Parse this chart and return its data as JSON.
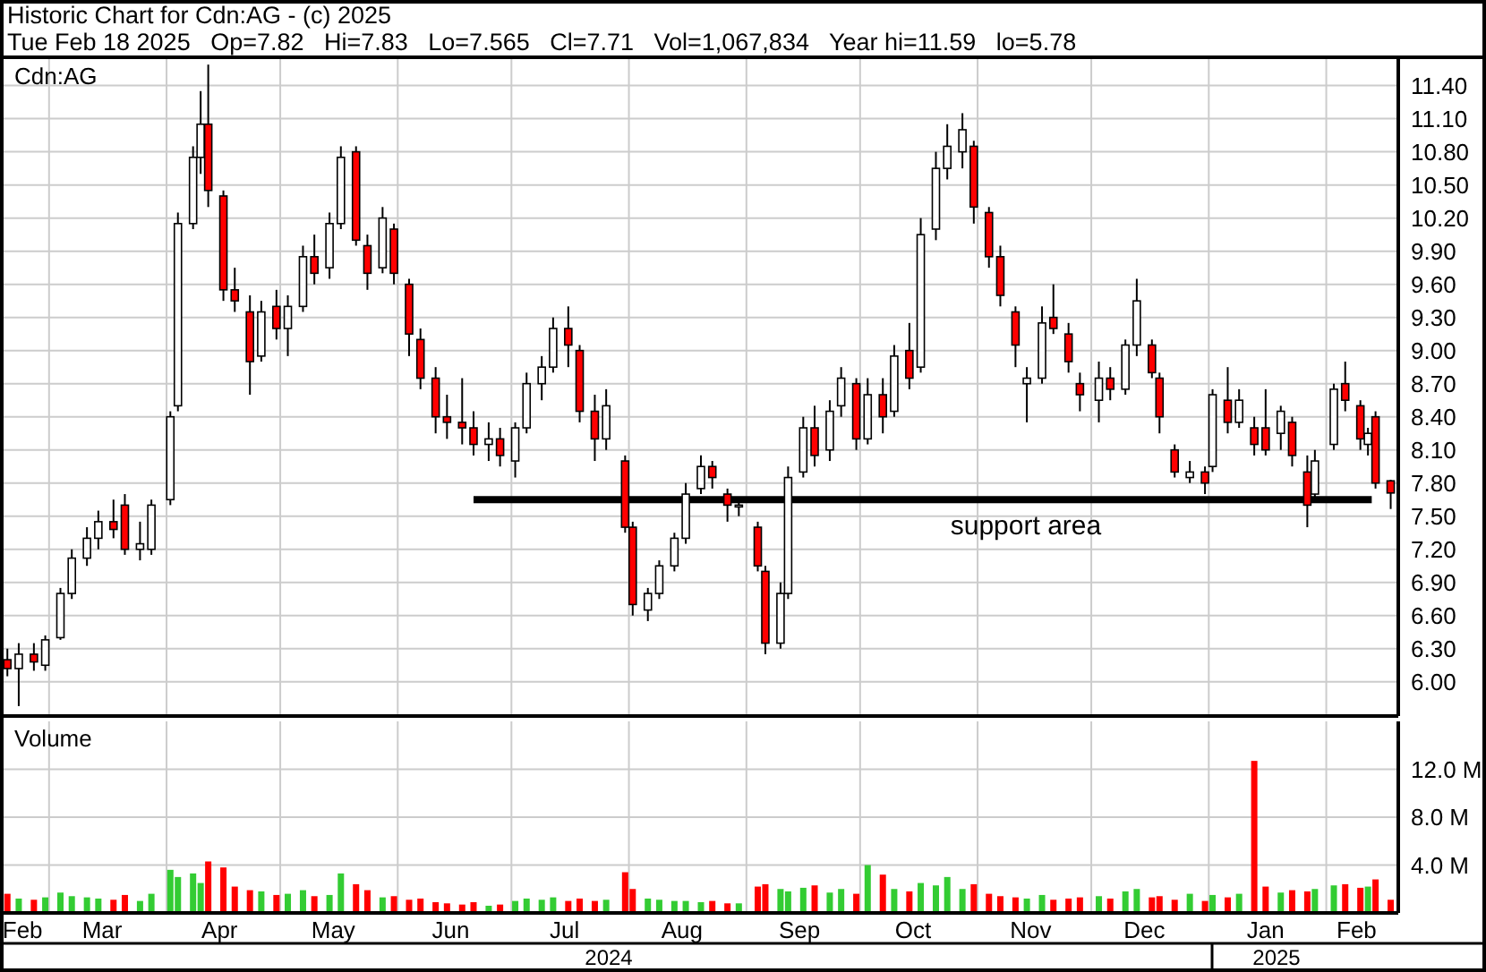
{
  "chart_data": [
    {
      "type": "candlestick",
      "title": "Historic Chart for Cdn:AG - (c) 2025",
      "subtitle": "Tue Feb 18 2025   Op=7.82   Hi=7.83   Lo=7.565   Cl=7.71   Vol=1,067,834   Year hi=11.59   lo=5.78",
      "ylabel": "Cdn:AG",
      "grid": true,
      "colors": [
        "#ff0000",
        "#ffffff",
        "#ff0000",
        "#ffffff",
        "#ffffff",
        "#ffffff",
        "#ffffff",
        "#ffffff",
        "#ff0000",
        "#ff0000",
        "#ffffff",
        "#ffffff",
        "#ffffff",
        "#ffffff",
        "#ffffff",
        "#ffffff",
        "#ff0000",
        "#ff0000",
        "#ff0000",
        "#ff0000",
        "#ffffff",
        "#ff0000",
        "#ffffff",
        "#ffffff",
        "#ff0000",
        "#ffffff",
        "#ffffff",
        "#ff0000",
        "#ff0000",
        "#ffffff",
        "#ff0000",
        "#ff0000",
        "#ff0000",
        "#ff0000",
        "#ff0000",
        "#ff0000",
        "#ff0000",
        "#ffffff",
        "#ff0000",
        "#ffffff",
        "#ffffff",
        "#ffffff",
        "#ffffff",
        "#ff0000",
        "#ff0000",
        "#ff0000",
        "#ffffff",
        "#ff0000",
        "#ff0000",
        "#ffffff",
        "#ffffff",
        "#ffffff",
        "#ffffff",
        "#ffffff",
        "#ff0000",
        "#ff0000",
        "#ffffff",
        "#ff0000",
        "#ff0000",
        "#ffffff",
        "#ffffff",
        "#ffffff",
        "#ff0000",
        "#ffffff",
        "#ffffff",
        "#ff0000",
        "#ffffff",
        "#ff0000",
        "#ffffff",
        "#ff0000",
        "#ffffff",
        "#ffffff",
        "#ffffff",
        "#ffffff",
        "#ff0000",
        "#ff0000",
        "#ff0000",
        "#ff0000",
        "#ffffff",
        "#ffffff",
        "#ff0000",
        "#ff0000",
        "#ff0000",
        "#ffffff",
        "#ff0000",
        "#ffffff",
        "#ffffff",
        "#ff0000",
        "#ff0000",
        "#ff0000",
        "#ffffff",
        "#ff0000",
        "#ffffff",
        "#ff0000",
        "#ffffff",
        "#ff0000",
        "#ff0000",
        "#ffffff",
        "#ff0000",
        "#ff0000",
        "#ffffff",
        "#ffffff",
        "#ff0000",
        "#ff0000",
        "#ffffff",
        "#ff0000",
        "#ff0000"
      ],
      "tick_labels": "y",
      "xlim": [
        "2024-02-18",
        "2025-02-20"
      ],
      "ylim": [
        5.69,
        11.64
      ],
      "xticks": [
        {
          "value": "2024-03-01",
          "label": null
        },
        {
          "value": "2024-04-01",
          "label": null
        },
        {
          "value": "2024-05-01",
          "label": null
        },
        {
          "value": "2024-06-01",
          "label": null
        },
        {
          "value": "2024-07-01",
          "label": null
        },
        {
          "value": "2024-08-01",
          "label": null
        },
        {
          "value": "2024-09-01",
          "label": null
        },
        {
          "value": "2024-10-01",
          "label": null
        },
        {
          "value": "2024-11-01",
          "label": null
        },
        {
          "value": "2024-12-01",
          "label": null
        },
        {
          "value": "2025-01-01",
          "label": null
        },
        {
          "value": "2025-02-01",
          "label": null
        }
      ],
      "yticks": [
        {
          "value": 6,
          "label": "6.00"
        },
        {
          "value": 6.3,
          "label": "6.30"
        },
        {
          "value": 6.6,
          "label": "6.60"
        },
        {
          "value": 6.9,
          "label": "6.90"
        },
        {
          "value": 7.2,
          "label": "7.20"
        },
        {
          "value": 7.5,
          "label": "7.50"
        },
        {
          "value": 7.8,
          "label": "7.80"
        },
        {
          "value": 8.1,
          "label": "8.10"
        },
        {
          "value": 8.4,
          "label": "8.40"
        },
        {
          "value": 8.7,
          "label": "8.70"
        },
        {
          "value": 9,
          "label": "9.00"
        },
        {
          "value": 9.3,
          "label": "9.30"
        },
        {
          "value": 9.6,
          "label": "9.60"
        },
        {
          "value": 9.9,
          "label": "9.90"
        },
        {
          "value": 10.2,
          "label": "10.20"
        },
        {
          "value": 10.5,
          "label": "10.50"
        },
        {
          "value": 10.8,
          "label": "10.80"
        },
        {
          "value": 11.1,
          "label": "11.10"
        },
        {
          "value": 11.4,
          "label": "11.40"
        }
      ],
      "x": [
        "2024-02-19",
        "2024-02-22",
        "2024-02-26",
        "2024-02-29",
        "2024-03-04",
        "2024-03-07",
        "2024-03-11",
        "2024-03-14",
        "2024-03-18",
        "2024-03-21",
        "2024-03-25",
        "2024-03-28",
        "2024-04-02",
        "2024-04-04",
        "2024-04-08",
        "2024-04-10",
        "2024-04-12",
        "2024-04-16",
        "2024-04-19",
        "2024-04-23",
        "2024-04-26",
        "2024-04-30",
        "2024-05-03",
        "2024-05-07",
        "2024-05-10",
        "2024-05-14",
        "2024-05-17",
        "2024-05-21",
        "2024-05-24",
        "2024-05-28",
        "2024-05-31",
        "2024-06-04",
        "2024-06-07",
        "2024-06-11",
        "2024-06-14",
        "2024-06-18",
        "2024-06-21",
        "2024-06-25",
        "2024-06-28",
        "2024-07-02",
        "2024-07-05",
        "2024-07-09",
        "2024-07-12",
        "2024-07-16",
        "2024-07-19",
        "2024-07-23",
        "2024-07-26",
        "2024-07-31",
        "2024-08-02",
        "2024-08-06",
        "2024-08-09",
        "2024-08-13",
        "2024-08-16",
        "2024-08-20",
        "2024-08-23",
        "2024-08-27",
        "2024-08-30",
        "2024-09-04",
        "2024-09-06",
        "2024-09-10",
        "2024-09-12",
        "2024-09-16",
        "2024-09-19",
        "2024-09-23",
        "2024-09-26",
        "2024-09-30",
        "2024-10-03",
        "2024-10-07",
        "2024-10-10",
        "2024-10-14",
        "2024-10-17",
        "2024-10-21",
        "2024-10-24",
        "2024-10-28",
        "2024-10-31",
        "2024-11-04",
        "2024-11-07",
        "2024-11-11",
        "2024-11-14",
        "2024-11-18",
        "2024-11-21",
        "2024-11-25",
        "2024-11-28",
        "2024-12-03",
        "2024-12-06",
        "2024-12-10",
        "2024-12-13",
        "2024-12-17",
        "2024-12-19",
        "2024-12-23",
        "2024-12-27",
        "2024-12-31",
        "2025-01-02",
        "2025-01-06",
        "2025-01-09",
        "2025-01-13",
        "2025-01-16",
        "2025-01-20",
        "2025-01-23",
        "2025-01-27",
        "2025-01-29",
        "2025-02-03",
        "2025-02-06",
        "2025-02-10",
        "2025-02-12",
        "2025-02-14",
        "2025-02-18"
      ],
      "ohlc": [
        [
          6.2,
          6.3,
          6.05,
          6.12
        ],
        [
          6.12,
          6.35,
          5.78,
          6.25
        ],
        [
          6.25,
          6.35,
          6.1,
          6.18
        ],
        [
          6.15,
          6.42,
          6.1,
          6.38
        ],
        [
          6.4,
          6.85,
          6.38,
          6.8
        ],
        [
          6.8,
          7.2,
          6.75,
          7.12
        ],
        [
          7.12,
          7.4,
          7.05,
          7.3
        ],
        [
          7.3,
          7.55,
          7.2,
          7.45
        ],
        [
          7.45,
          7.65,
          7.3,
          7.38
        ],
        [
          7.6,
          7.7,
          7.15,
          7.2
        ],
        [
          7.2,
          7.45,
          7.1,
          7.25
        ],
        [
          7.2,
          7.65,
          7.15,
          7.6
        ],
        [
          7.65,
          8.45,
          7.6,
          8.4
        ],
        [
          8.5,
          10.25,
          8.45,
          10.15
        ],
        [
          10.15,
          10.85,
          10.1,
          10.75
        ],
        [
          10.75,
          11.35,
          10.6,
          11.05
        ],
        [
          11.05,
          11.59,
          10.3,
          10.45
        ],
        [
          10.4,
          10.45,
          9.45,
          9.55
        ],
        [
          9.55,
          9.75,
          9.35,
          9.45
        ],
        [
          9.35,
          9.5,
          8.6,
          8.9
        ],
        [
          8.95,
          9.45,
          8.9,
          9.35
        ],
        [
          9.4,
          9.55,
          9.1,
          9.2
        ],
        [
          9.2,
          9.5,
          8.95,
          9.4
        ],
        [
          9.4,
          9.95,
          9.35,
          9.85
        ],
        [
          9.85,
          10.05,
          9.6,
          9.7
        ],
        [
          9.75,
          10.25,
          9.65,
          10.15
        ],
        [
          10.15,
          10.85,
          10.1,
          10.75
        ],
        [
          10.8,
          10.85,
          9.95,
          10
        ],
        [
          9.95,
          10.05,
          9.55,
          9.7
        ],
        [
          9.75,
          10.3,
          9.7,
          10.2
        ],
        [
          10.1,
          10.15,
          9.6,
          9.7
        ],
        [
          9.6,
          9.65,
          8.95,
          9.15
        ],
        [
          9.1,
          9.2,
          8.65,
          8.75
        ],
        [
          8.75,
          8.85,
          8.25,
          8.4
        ],
        [
          8.4,
          8.6,
          8.2,
          8.35
        ],
        [
          8.35,
          8.75,
          8.15,
          8.3
        ],
        [
          8.3,
          8.45,
          8.05,
          8.15
        ],
        [
          8.15,
          8.35,
          8,
          8.2
        ],
        [
          8.2,
          8.3,
          7.95,
          8.05
        ],
        [
          8,
          8.35,
          7.85,
          8.3
        ],
        [
          8.3,
          8.8,
          8.25,
          8.7
        ],
        [
          8.7,
          8.95,
          8.55,
          8.85
        ],
        [
          8.85,
          9.3,
          8.8,
          9.2
        ],
        [
          9.2,
          9.4,
          8.85,
          9.05
        ],
        [
          9,
          9.05,
          8.35,
          8.45
        ],
        [
          8.45,
          8.6,
          8,
          8.2
        ],
        [
          8.2,
          8.65,
          8.1,
          8.5
        ],
        [
          8,
          8.05,
          7.35,
          7.4
        ],
        [
          7.4,
          7.45,
          6.6,
          6.7
        ],
        [
          6.65,
          6.85,
          6.55,
          6.8
        ],
        [
          6.8,
          7.1,
          6.75,
          7.05
        ],
        [
          7.05,
          7.35,
          7,
          7.3
        ],
        [
          7.3,
          7.8,
          7.25,
          7.7
        ],
        [
          7.75,
          8.05,
          7.7,
          7.95
        ],
        [
          7.95,
          8,
          7.75,
          7.85
        ],
        [
          7.7,
          7.75,
          7.45,
          7.6
        ],
        [
          7.6,
          7.65,
          7.5,
          7.6
        ],
        [
          7.4,
          7.45,
          7,
          7.05
        ],
        [
          7,
          7.05,
          6.25,
          6.35
        ],
        [
          6.35,
          6.9,
          6.3,
          6.8
        ],
        [
          6.8,
          7.95,
          6.75,
          7.85
        ],
        [
          7.9,
          8.4,
          7.85,
          8.3
        ],
        [
          8.3,
          8.5,
          7.95,
          8.05
        ],
        [
          8.1,
          8.55,
          8,
          8.45
        ],
        [
          8.5,
          8.85,
          8.4,
          8.75
        ],
        [
          8.7,
          8.75,
          8.1,
          8.2
        ],
        [
          8.2,
          8.75,
          8.15,
          8.6
        ],
        [
          8.6,
          8.75,
          8.25,
          8.4
        ],
        [
          8.45,
          9.05,
          8.4,
          8.95
        ],
        [
          9,
          9.25,
          8.65,
          8.75
        ],
        [
          8.85,
          10.2,
          8.8,
          10.05
        ],
        [
          10.1,
          10.8,
          10,
          10.65
        ],
        [
          10.65,
          11.05,
          10.55,
          10.85
        ],
        [
          10.8,
          11.15,
          10.65,
          11
        ],
        [
          10.85,
          10.9,
          10.15,
          10.3
        ],
        [
          10.25,
          10.3,
          9.75,
          9.85
        ],
        [
          9.85,
          9.95,
          9.4,
          9.5
        ],
        [
          9.35,
          9.4,
          8.85,
          9.05
        ],
        [
          8.7,
          8.85,
          8.35,
          8.75
        ],
        [
          8.75,
          9.4,
          8.7,
          9.25
        ],
        [
          9.3,
          9.6,
          9.15,
          9.2
        ],
        [
          9.15,
          9.25,
          8.8,
          8.9
        ],
        [
          8.7,
          8.8,
          8.45,
          8.6
        ],
        [
          8.55,
          8.9,
          8.35,
          8.75
        ],
        [
          8.75,
          8.85,
          8.55,
          8.65
        ],
        [
          8.65,
          9.1,
          8.6,
          9.05
        ],
        [
          9.05,
          9.65,
          8.95,
          9.45
        ],
        [
          9.05,
          9.1,
          8.75,
          8.8
        ],
        [
          8.75,
          8.8,
          8.25,
          8.4
        ],
        [
          8.1,
          8.15,
          7.85,
          7.9
        ],
        [
          7.85,
          8,
          7.8,
          7.9
        ],
        [
          7.9,
          7.95,
          7.7,
          7.8
        ],
        [
          7.95,
          8.65,
          7.9,
          8.6
        ],
        [
          8.55,
          8.85,
          8.25,
          8.35
        ],
        [
          8.35,
          8.65,
          8.3,
          8.55
        ],
        [
          8.3,
          8.4,
          8.05,
          8.15
        ],
        [
          8.3,
          8.65,
          8.05,
          8.1
        ],
        [
          8.25,
          8.5,
          8.1,
          8.45
        ],
        [
          8.35,
          8.4,
          7.95,
          8.05
        ],
        [
          7.9,
          8.05,
          7.4,
          7.6
        ],
        [
          7.7,
          8.1,
          7.65,
          8
        ],
        [
          8.15,
          8.7,
          8.1,
          8.65
        ],
        [
          8.7,
          8.9,
          8.45,
          8.55
        ],
        [
          8.5,
          8.55,
          8.1,
          8.2
        ],
        [
          8.15,
          8.3,
          8.05,
          8.25
        ],
        [
          8.4,
          8.45,
          7.75,
          7.8
        ],
        [
          7.82,
          7.83,
          7.565,
          7.71
        ]
      ],
      "series": [
        {
          "type": "line",
          "x": [
            "2024-06-21",
            "2025-02-13"
          ],
          "values": [
            7.65,
            7.65
          ],
          "color": "#000000"
        }
      ],
      "annotations": [
        "support area"
      ]
    },
    {
      "type": "bar",
      "ylabel": "Volume",
      "grid": true,
      "xlim": [
        "2024-02-18",
        "2025-02-20"
      ],
      "ylim": [
        0,
        16
      ],
      "xticks": [
        {
          "value": "2024-02-23",
          "label": "Feb"
        },
        {
          "value": "2024-03-01",
          "label": null
        },
        {
          "value": "2024-03-15",
          "label": "Mar"
        },
        {
          "value": "2024-04-01",
          "label": null
        },
        {
          "value": "2024-04-15",
          "label": "Apr"
        },
        {
          "value": "2024-05-01",
          "label": null
        },
        {
          "value": "2024-05-15",
          "label": "May"
        },
        {
          "value": "2024-06-01",
          "label": null
        },
        {
          "value": "2024-06-15",
          "label": "Jun"
        },
        {
          "value": "2024-07-01",
          "label": null
        },
        {
          "value": "2024-07-15",
          "label": "Jul"
        },
        {
          "value": "2024-08-01",
          "label": null
        },
        {
          "value": "2024-08-15",
          "label": "Aug"
        },
        {
          "value": "2024-09-01",
          "label": null
        },
        {
          "value": "2024-09-15",
          "label": "Sep"
        },
        {
          "value": "2024-10-01",
          "label": null
        },
        {
          "value": "2024-10-15",
          "label": "Oct"
        },
        {
          "value": "2024-11-01",
          "label": null
        },
        {
          "value": "2024-11-15",
          "label": "Nov"
        },
        {
          "value": "2024-12-01",
          "label": null
        },
        {
          "value": "2024-12-15",
          "label": "Dec"
        },
        {
          "value": "2025-01-01",
          "label": null
        },
        {
          "value": "2025-01-16",
          "label": "Jan"
        },
        {
          "value": "2025-02-01",
          "label": null
        },
        {
          "value": "2025-02-09",
          "label": "Feb"
        }
      ],
      "yticks": [
        {
          "value": 4,
          "label": "4.0 M"
        },
        {
          "value": 8,
          "label": "8.0 M"
        },
        {
          "value": 12,
          "label": "12.0 M"
        }
      ],
      "x": [
        "2024-02-19",
        "2024-02-22",
        "2024-02-26",
        "2024-02-29",
        "2024-03-04",
        "2024-03-07",
        "2024-03-11",
        "2024-03-14",
        "2024-03-18",
        "2024-03-21",
        "2024-03-25",
        "2024-03-28",
        "2024-04-02",
        "2024-04-04",
        "2024-04-08",
        "2024-04-10",
        "2024-04-12",
        "2024-04-16",
        "2024-04-19",
        "2024-04-23",
        "2024-04-26",
        "2024-04-30",
        "2024-05-03",
        "2024-05-07",
        "2024-05-10",
        "2024-05-14",
        "2024-05-17",
        "2024-05-21",
        "2024-05-24",
        "2024-05-28",
        "2024-05-31",
        "2024-06-04",
        "2024-06-07",
        "2024-06-11",
        "2024-06-14",
        "2024-06-18",
        "2024-06-21",
        "2024-06-25",
        "2024-06-28",
        "2024-07-02",
        "2024-07-05",
        "2024-07-09",
        "2024-07-12",
        "2024-07-16",
        "2024-07-19",
        "2024-07-23",
        "2024-07-26",
        "2024-07-31",
        "2024-08-02",
        "2024-08-06",
        "2024-08-09",
        "2024-08-13",
        "2024-08-16",
        "2024-08-20",
        "2024-08-23",
        "2024-08-27",
        "2024-08-30",
        "2024-09-04",
        "2024-09-06",
        "2024-09-10",
        "2024-09-12",
        "2024-09-16",
        "2024-09-19",
        "2024-09-23",
        "2024-09-26",
        "2024-09-30",
        "2024-10-03",
        "2024-10-07",
        "2024-10-10",
        "2024-10-14",
        "2024-10-17",
        "2024-10-21",
        "2024-10-24",
        "2024-10-28",
        "2024-10-31",
        "2024-11-04",
        "2024-11-07",
        "2024-11-11",
        "2024-11-14",
        "2024-11-18",
        "2024-11-21",
        "2024-11-25",
        "2024-11-28",
        "2024-12-03",
        "2024-12-06",
        "2024-12-10",
        "2024-12-13",
        "2024-12-17",
        "2024-12-19",
        "2024-12-23",
        "2024-12-27",
        "2024-12-31",
        "2025-01-02",
        "2025-01-06",
        "2025-01-09",
        "2025-01-13",
        "2025-01-16",
        "2025-01-20",
        "2025-01-23",
        "2025-01-27",
        "2025-01-29",
        "2025-02-03",
        "2025-02-06",
        "2025-02-10",
        "2025-02-12",
        "2025-02-14",
        "2025-02-18"
      ],
      "values": [
        1.6,
        1.2,
        1.1,
        1.3,
        1.7,
        1.4,
        1.3,
        1.2,
        1.1,
        1.5,
        1.0,
        1.6,
        3.6,
        3.0,
        3.3,
        2.5,
        4.3,
        3.8,
        2.2,
        1.9,
        1.8,
        1.5,
        1.6,
        1.9,
        1.4,
        1.5,
        3.3,
        2.4,
        1.9,
        1.3,
        1.4,
        1.1,
        1.2,
        0.9,
        0.8,
        0.7,
        0.9,
        0.6,
        0.7,
        1.0,
        1.2,
        1.1,
        1.3,
        1.0,
        1.2,
        1.0,
        1.1,
        3.4,
        2.0,
        1.2,
        1.1,
        1.0,
        1.0,
        0.9,
        1.0,
        0.8,
        0.8,
        2.2,
        2.4,
        2.0,
        1.8,
        2.1,
        2.3,
        1.7,
        2.0,
        1.6,
        4.0,
        3.2,
        2.0,
        1.8,
        2.5,
        2.3,
        3.0,
        2.0,
        2.4,
        1.6,
        1.4,
        1.3,
        1.2,
        1.5,
        1.1,
        1.2,
        1.3,
        1.4,
        1.2,
        1.8,
        2.0,
        1.3,
        1.4,
        1.1,
        1.6,
        1.0,
        1.5,
        1.3,
        1.6,
        12.7,
        2.2,
        1.7,
        1.9,
        1.8,
        2.0,
        2.3,
        2.4,
        2.1,
        2.2,
        2.8,
        1.1
      ],
      "colors": [
        "#ff0000",
        "#33cc33",
        "#ff0000",
        "#33cc33",
        "#33cc33",
        "#33cc33",
        "#33cc33",
        "#33cc33",
        "#ff0000",
        "#ff0000",
        "#33cc33",
        "#33cc33",
        "#33cc33",
        "#33cc33",
        "#33cc33",
        "#33cc33",
        "#ff0000",
        "#ff0000",
        "#ff0000",
        "#ff0000",
        "#33cc33",
        "#ff0000",
        "#33cc33",
        "#33cc33",
        "#ff0000",
        "#33cc33",
        "#33cc33",
        "#ff0000",
        "#ff0000",
        "#33cc33",
        "#ff0000",
        "#ff0000",
        "#ff0000",
        "#ff0000",
        "#ff0000",
        "#ff0000",
        "#ff0000",
        "#33cc33",
        "#ff0000",
        "#33cc33",
        "#33cc33",
        "#33cc33",
        "#33cc33",
        "#ff0000",
        "#ff0000",
        "#ff0000",
        "#33cc33",
        "#ff0000",
        "#ff0000",
        "#33cc33",
        "#33cc33",
        "#33cc33",
        "#33cc33",
        "#33cc33",
        "#ff0000",
        "#ff0000",
        "#33cc33",
        "#ff0000",
        "#ff0000",
        "#33cc33",
        "#33cc33",
        "#33cc33",
        "#ff0000",
        "#33cc33",
        "#33cc33",
        "#ff0000",
        "#33cc33",
        "#ff0000",
        "#33cc33",
        "#ff0000",
        "#33cc33",
        "#33cc33",
        "#33cc33",
        "#33cc33",
        "#ff0000",
        "#ff0000",
        "#ff0000",
        "#ff0000",
        "#33cc33",
        "#33cc33",
        "#ff0000",
        "#ff0000",
        "#ff0000",
        "#33cc33",
        "#ff0000",
        "#33cc33",
        "#33cc33",
        "#ff0000",
        "#ff0000",
        "#ff0000",
        "#33cc33",
        "#ff0000",
        "#33cc33",
        "#ff0000",
        "#33cc33",
        "#ff0000",
        "#ff0000",
        "#33cc33",
        "#ff0000",
        "#ff0000",
        "#33cc33",
        "#33cc33",
        "#ff0000",
        "#ff0000",
        "#33cc33",
        "#ff0000",
        "#ff0000"
      ],
      "annotations": [
        "2024",
        "2025"
      ]
    }
  ]
}
